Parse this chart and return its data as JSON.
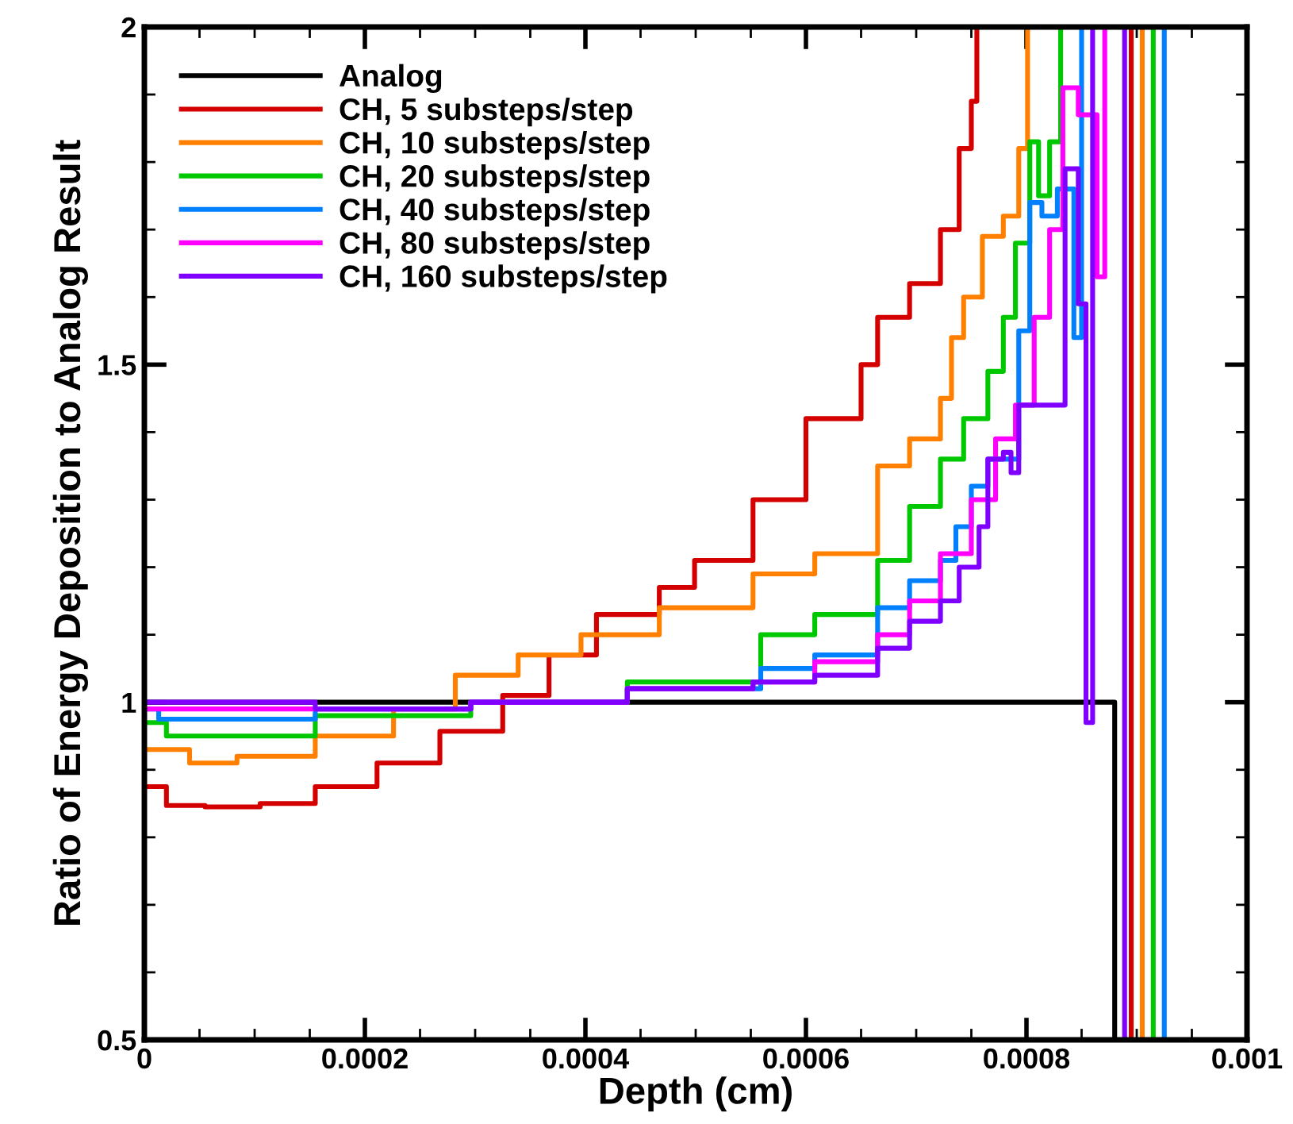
{
  "chart_data": {
    "type": "step",
    "xlabel": "Depth (cm)",
    "ylabel": "Ratio of Energy Deposition to Analog Result",
    "xlim": [
      0,
      0.001
    ],
    "ylim": [
      0.5,
      2
    ],
    "xticks": [
      0,
      0.0002,
      0.0004,
      0.0006,
      0.0008,
      0.001
    ],
    "yticks": [
      0.5,
      1,
      1.5,
      2
    ],
    "grid": false,
    "legend": "top left",
    "line_style": "solid",
    "marker": "none",
    "series": [
      {
        "name": "Analog",
        "color": "#000000",
        "x": [
          0,
          0.00088
        ],
        "values": [
          1,
          0.5
        ]
      },
      {
        "name": "CH, 5 substeps/step",
        "color": "#d40000",
        "x": [
          0,
          2e-05,
          5.5e-05,
          0.000105,
          0.000155,
          0.000211,
          0.000268,
          0.000325,
          0.000367,
          0.00041,
          0.000467,
          0.000499,
          0.000552,
          0.0006,
          0.00065,
          0.000665,
          0.000694,
          0.000722,
          0.000739,
          0.00075,
          0.000755,
          0.000895
        ],
        "values": [
          0.875,
          0.847,
          0.845,
          0.85,
          0.875,
          0.91,
          0.957,
          1.01,
          1.07,
          1.13,
          1.17,
          1.21,
          1.3,
          1.42,
          1.5,
          1.57,
          1.62,
          1.7,
          1.82,
          1.89,
          2,
          0.5
        ]
      },
      {
        "name": "CH, 10 substeps/step",
        "color": "#ff8000",
        "x": [
          0,
          4.1e-05,
          8.4e-05,
          0.000155,
          0.000226,
          0.000282,
          0.000339,
          0.000396,
          0.000467,
          0.000552,
          0.000608,
          0.000665,
          0.000694,
          0.000722,
          0.000732,
          0.000743,
          0.00076,
          0.000779,
          0.000786,
          0.000793,
          0.000801,
          0.000905
        ],
        "values": [
          0.93,
          0.91,
          0.92,
          0.95,
          0.99,
          1.04,
          1.07,
          1.1,
          1.14,
          1.19,
          1.22,
          1.35,
          1.39,
          1.45,
          1.54,
          1.6,
          1.69,
          1.72,
          1.72,
          1.82,
          2,
          0.5
        ]
      },
      {
        "name": "CH, 20 substeps/step",
        "color": "#00c800",
        "x": [
          0,
          2e-05,
          0.000155,
          0.000296,
          0.000438,
          0.000559,
          0.000608,
          0.000665,
          0.000694,
          0.000722,
          0.000743,
          0.000765,
          0.000779,
          0.00079,
          0.000803,
          0.000811,
          0.000821,
          0.000831,
          0.000915
        ],
        "values": [
          0.97,
          0.95,
          0.98,
          1.0,
          1.03,
          1.1,
          1.13,
          1.21,
          1.29,
          1.36,
          1.42,
          1.49,
          1.57,
          1.68,
          1.83,
          1.75,
          1.83,
          2,
          0.5
        ]
      },
      {
        "name": "CH, 40 substeps/step",
        "color": "#0080ff",
        "x": [
          0,
          1.3e-05,
          0.000155,
          0.000296,
          0.000438,
          0.000559,
          0.000608,
          0.000665,
          0.000694,
          0.000722,
          0.000736,
          0.00075,
          0.000765,
          0.000793,
          0.000803,
          0.000814,
          0.000828,
          0.000843,
          0.00085,
          0.000925
        ],
        "values": [
          0.99,
          0.975,
          0.99,
          1.0,
          1.02,
          1.05,
          1.07,
          1.14,
          1.18,
          1.21,
          1.26,
          1.32,
          1.36,
          1.55,
          1.74,
          1.72,
          1.76,
          1.54,
          2,
          0.5
        ]
      },
      {
        "name": "CH, 80 substeps/step",
        "color": "#ff00ff",
        "x": [
          0,
          0.000155,
          0.000296,
          0.000438,
          0.000552,
          0.000608,
          0.000665,
          0.000694,
          0.000722,
          0.00075,
          0.000772,
          0.00079,
          0.000807,
          0.000821,
          0.000833,
          0.000847,
          0.000864,
          0.000871
        ],
        "values": [
          0.99,
          0.99,
          1.0,
          1.02,
          1.03,
          1.06,
          1.1,
          1.15,
          1.22,
          1.3,
          1.39,
          1.44,
          1.57,
          1.7,
          1.91,
          1.87,
          1.63,
          2
        ]
      },
      {
        "name": "CH, 160 substeps/step",
        "color": "#8000ff",
        "x": [
          0,
          0.000155,
          0.000296,
          0.000438,
          0.000552,
          0.000608,
          0.000665,
          0.000694,
          0.000722,
          0.000739,
          0.000757,
          0.000765,
          0.000779,
          0.000786,
          0.000793,
          0.000835,
          0.000847,
          0.000854,
          0.00086,
          0.000889
        ],
        "values": [
          1.0,
          0.99,
          1.0,
          1.02,
          1.03,
          1.04,
          1.08,
          1.12,
          1.15,
          1.2,
          1.26,
          1.36,
          1.37,
          1.34,
          1.44,
          1.79,
          1.59,
          0.97,
          2,
          0.5
        ]
      }
    ]
  }
}
